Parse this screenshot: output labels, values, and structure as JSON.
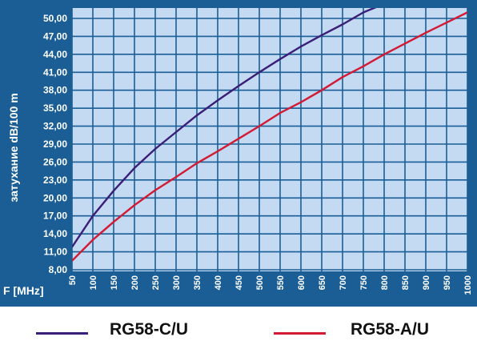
{
  "colors": {
    "panel": "#1a5e95",
    "plot_area": "#c4d9f2",
    "grid": "#1a5e95",
    "text_on_panel": "#ffffff",
    "series_c": "#3a1e78",
    "series_a": "#d31a35"
  },
  "chart_data": {
    "type": "line",
    "title": "",
    "xlabel": "F [MHz]",
    "ylabel": "затухание dB/100 m",
    "x_ticks": [
      "50",
      "100",
      "150",
      "200",
      "250",
      "300",
      "350",
      "400",
      "450",
      "500",
      "550",
      "600",
      "650",
      "700",
      "750",
      "800",
      "850",
      "900",
      "950",
      "1000"
    ],
    "y_ticks": [
      "8,00",
      "11,00",
      "14,00",
      "17,00",
      "20,00",
      "23,00",
      "26,00",
      "29,00",
      "32,00",
      "35,00",
      "38,00",
      "41,00",
      "44,00",
      "47,00",
      "50,00"
    ],
    "xlim": [
      50,
      1000
    ],
    "ylim": [
      8,
      52
    ],
    "grid": true,
    "legend_position": "bottom",
    "series": [
      {
        "name": "RG58-C/U",
        "color": "#3a1e78",
        "x": [
          50,
          100,
          150,
          200,
          250,
          300,
          350,
          400,
          450,
          500,
          550,
          600,
          650,
          700,
          750,
          785
        ],
        "y": [
          11.8,
          17.0,
          21.2,
          25.0,
          28.2,
          31.0,
          33.8,
          36.3,
          38.7,
          41.0,
          43.2,
          45.3,
          47.2,
          49.0,
          51.0,
          52.0
        ]
      },
      {
        "name": "RG58-A/U",
        "color": "#d31a35",
        "x": [
          50,
          100,
          150,
          200,
          250,
          300,
          350,
          400,
          450,
          500,
          550,
          600,
          650,
          700,
          750,
          800,
          850,
          900,
          950,
          1000
        ],
        "y": [
          9.5,
          13.0,
          16.0,
          18.8,
          21.3,
          23.5,
          25.8,
          27.8,
          29.9,
          32.0,
          34.2,
          36.0,
          38.0,
          40.2,
          42.0,
          44.0,
          45.8,
          47.6,
          49.3,
          51.0
        ]
      }
    ]
  }
}
